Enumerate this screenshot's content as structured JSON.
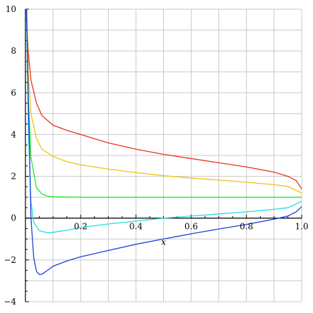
{
  "chart_data": {
    "type": "line",
    "title": "",
    "xlabel": "x",
    "ylabel": "",
    "xlim": [
      0,
      1
    ],
    "ylim": [
      -4,
      10
    ],
    "grid": true,
    "x_ticks": [
      {
        "value": 0.2,
        "label": "0.2"
      },
      {
        "value": 0.4,
        "label": "0.4"
      },
      {
        "value": 0.6,
        "label": "0.6"
      },
      {
        "value": 0.8,
        "label": "0.8"
      },
      {
        "value": 1.0,
        "label": "1.0"
      }
    ],
    "y_ticks": [
      {
        "value": -4,
        "label": "−4"
      },
      {
        "value": -2,
        "label": "−2"
      },
      {
        "value": 0,
        "label": "0"
      },
      {
        "value": 2,
        "label": "2"
      },
      {
        "value": 4,
        "label": "4"
      },
      {
        "value": 6,
        "label": "6"
      },
      {
        "value": 8,
        "label": "8"
      },
      {
        "value": 10,
        "label": "10"
      }
    ],
    "series": [
      {
        "color": "#e8341c",
        "x": [
          0.003,
          0.01,
          0.02,
          0.04,
          0.06,
          0.1,
          0.15,
          0.2,
          0.3,
          0.4,
          0.5,
          0.6,
          0.7,
          0.8,
          0.9,
          0.95,
          0.98,
          1.0
        ],
        "y": [
          10.0,
          8.0,
          6.6,
          5.5,
          4.9,
          4.45,
          4.2,
          4.0,
          3.6,
          3.3,
          3.05,
          2.85,
          2.65,
          2.45,
          2.2,
          2.0,
          1.8,
          1.4
        ]
      },
      {
        "color": "#f2c20f",
        "x": [
          0.005,
          0.01,
          0.02,
          0.04,
          0.06,
          0.1,
          0.15,
          0.2,
          0.3,
          0.4,
          0.5,
          0.6,
          0.7,
          0.8,
          0.9,
          0.95,
          1.0
        ],
        "y": [
          10.0,
          7.0,
          5.0,
          3.8,
          3.3,
          2.95,
          2.7,
          2.55,
          2.35,
          2.18,
          2.03,
          1.92,
          1.82,
          1.72,
          1.6,
          1.52,
          1.2
        ]
      },
      {
        "color": "#1ee626",
        "x": [
          0.004,
          0.01,
          0.02,
          0.04,
          0.06,
          0.08,
          0.1,
          0.2,
          0.4,
          0.6,
          0.8,
          1.0
        ],
        "y": [
          10.0,
          6.0,
          2.9,
          1.45,
          1.15,
          1.05,
          1.02,
          1.0,
          1.0,
          1.0,
          1.0,
          1.0
        ]
      },
      {
        "color": "#21dde8",
        "x": [
          0.004,
          0.01,
          0.02,
          0.03,
          0.05,
          0.08,
          0.1,
          0.15,
          0.2,
          0.3,
          0.4,
          0.5,
          0.6,
          0.7,
          0.8,
          0.9,
          0.95,
          1.0
        ],
        "y": [
          10.0,
          4.5,
          0.8,
          -0.2,
          -0.6,
          -0.7,
          -0.68,
          -0.58,
          -0.45,
          -0.28,
          -0.14,
          0.0,
          0.1,
          0.2,
          0.3,
          0.42,
          0.5,
          0.8
        ]
      },
      {
        "color": "#1f3fd8",
        "x": [
          0.004,
          0.01,
          0.02,
          0.03,
          0.04,
          0.05,
          0.06,
          0.08,
          0.1,
          0.15,
          0.2,
          0.3,
          0.4,
          0.5,
          0.6,
          0.7,
          0.8,
          0.9,
          0.95,
          0.98,
          1.0
        ],
        "y": [
          10.0,
          6.0,
          0.0,
          -1.9,
          -2.55,
          -2.7,
          -2.68,
          -2.5,
          -2.3,
          -2.05,
          -1.85,
          -1.55,
          -1.25,
          -1.0,
          -0.75,
          -0.52,
          -0.3,
          -0.05,
          0.1,
          0.3,
          0.55
        ]
      }
    ]
  }
}
